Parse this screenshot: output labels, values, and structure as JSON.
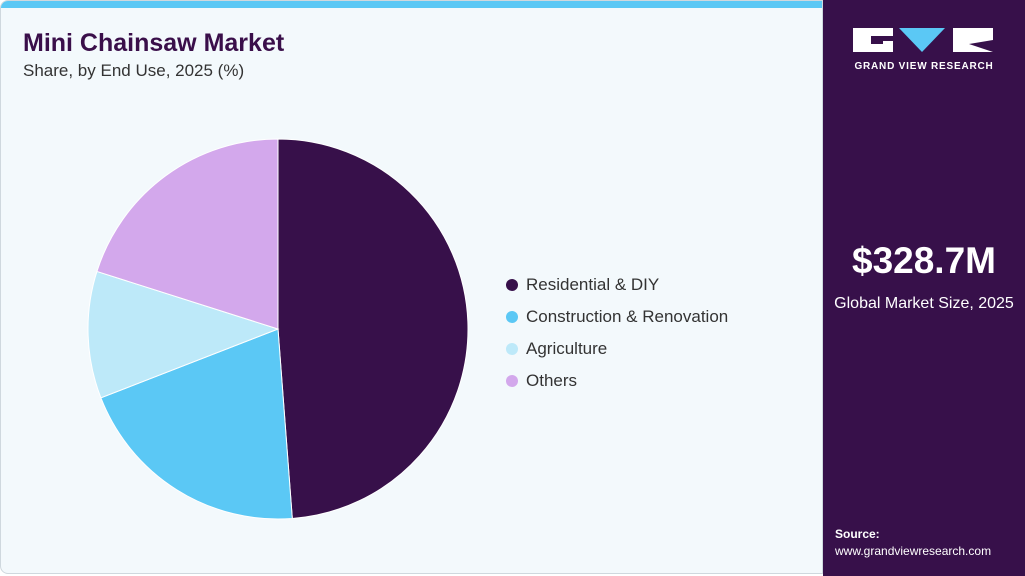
{
  "chart_data": {
    "type": "pie",
    "title": "Mini Chainsaw Market",
    "subtitle": "Share, by End Use, 2025 (%)",
    "categories": [
      "Residential & DIY",
      "Construction & Renovation",
      "Agriculture",
      "Others"
    ],
    "values": [
      48.8,
      20.3,
      10.8,
      20.1
    ],
    "colors": [
      "#37104a",
      "#5bc8f5",
      "#bde9f9",
      "#d3a8ec"
    ],
    "legend_position": "right"
  },
  "sidebar": {
    "logo_text": "GRAND VIEW RESEARCH",
    "market_size": "$328.7M",
    "market_size_label": "Global Market Size, 2025",
    "source_label": "Source:",
    "source_url": "www.grandviewresearch.com"
  }
}
